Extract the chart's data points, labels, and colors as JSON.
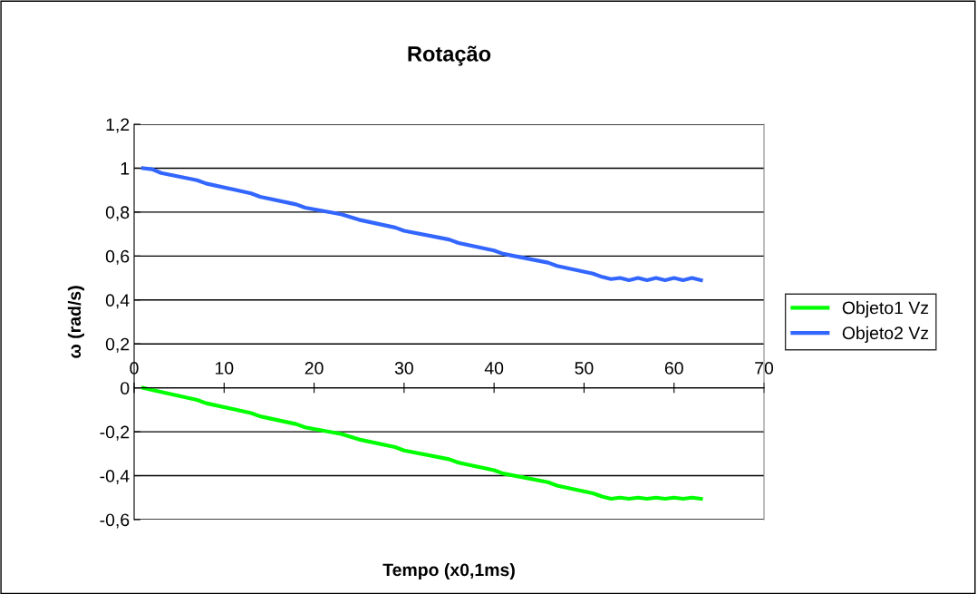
{
  "chart_data": {
    "type": "line",
    "title": "Rotação",
    "xlabel": "Tempo (x0,1ms)",
    "ylabel": "ω (rad/s)",
    "xlim": [
      0,
      70
    ],
    "xticks": [
      0,
      10,
      20,
      30,
      40,
      50,
      60,
      70
    ],
    "ylim": [
      -0.6,
      1.2
    ],
    "yticks": [
      {
        "value": -0.6,
        "label": "-0,6"
      },
      {
        "value": -0.4,
        "label": "-0,4"
      },
      {
        "value": -0.2,
        "label": "-0,2"
      },
      0,
      {
        "value": 0.2,
        "label": "0,2"
      },
      {
        "value": 0.4,
        "label": "0,4"
      },
      {
        "value": 0.6,
        "label": "0,6"
      },
      {
        "value": 0.8,
        "label": "0,8"
      },
      1,
      {
        "value": 1.2,
        "label": "1,2"
      }
    ],
    "grid": "y",
    "legend": "right",
    "marker": "none",
    "line_style": "solid",
    "series": [
      {
        "name": "Objeto1 Vz",
        "color": "#00ff00",
        "x": [
          1,
          2,
          7,
          8,
          13,
          14,
          18,
          19,
          23,
          25,
          29,
          30,
          35,
          36,
          40,
          41,
          46,
          47,
          51,
          52,
          53,
          54,
          55,
          56,
          57,
          58,
          59,
          60,
          61,
          62,
          63
        ],
        "values": [
          0,
          -0.01,
          -0.055,
          -0.07,
          -0.115,
          -0.13,
          -0.165,
          -0.18,
          -0.21,
          -0.235,
          -0.27,
          -0.285,
          -0.325,
          -0.34,
          -0.375,
          -0.39,
          -0.43,
          -0.445,
          -0.48,
          -0.495,
          -0.505,
          -0.5,
          -0.505,
          -0.5,
          -0.505,
          -0.5,
          -0.505,
          -0.5,
          -0.505,
          -0.5,
          -0.505
        ]
      },
      {
        "name": "Objeto2 Vz",
        "color": "#3366ff",
        "x": [
          1,
          2,
          3,
          7,
          8,
          13,
          14,
          18,
          19,
          23,
          25,
          29,
          30,
          35,
          36,
          40,
          41,
          46,
          47,
          51,
          52,
          53,
          54,
          55,
          56,
          57,
          58,
          59,
          60,
          61,
          62,
          63
        ],
        "values": [
          1,
          0.995,
          0.978,
          0.945,
          0.93,
          0.885,
          0.87,
          0.835,
          0.82,
          0.79,
          0.765,
          0.73,
          0.715,
          0.675,
          0.66,
          0.625,
          0.61,
          0.57,
          0.555,
          0.52,
          0.505,
          0.495,
          0.5,
          0.49,
          0.5,
          0.49,
          0.5,
          0.49,
          0.5,
          0.49,
          0.5,
          0.49
        ]
      }
    ]
  }
}
